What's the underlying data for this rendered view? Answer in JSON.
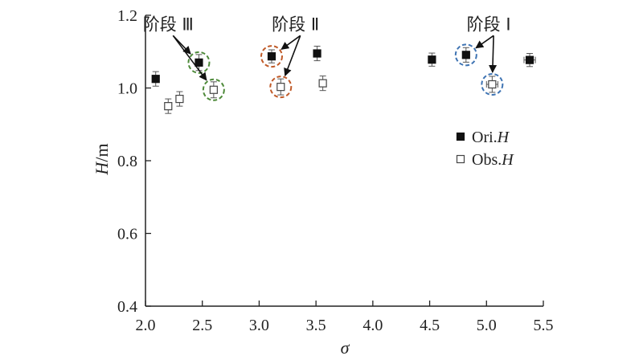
{
  "chart_data": {
    "type": "scatter",
    "title": "",
    "xlabel": "σ",
    "ylabel": "H/m",
    "xlim": [
      2.0,
      5.5
    ],
    "ylim": [
      0.4,
      1.2
    ],
    "xticks": [
      "2.0",
      "2.5",
      "3.0",
      "3.5",
      "4.0",
      "4.5",
      "5.0",
      "5.5"
    ],
    "yticks": [
      "0.4",
      "0.6",
      "0.8",
      "1.0",
      "1.2"
    ],
    "grid": false,
    "legend_position": "right",
    "series": [
      {
        "name": "Ori.H",
        "legend_prefix": "Ori.",
        "legend_var": "H",
        "marker": "filled-square",
        "x": [
          2.09,
          2.47,
          3.11,
          3.51,
          4.52,
          4.82,
          5.38
        ],
        "y": [
          1.025,
          1.07,
          1.087,
          1.095,
          1.078,
          1.091,
          1.077
        ],
        "yerr": [
          0.02,
          0.022,
          0.018,
          0.02,
          0.018,
          0.02,
          0.018
        ],
        "xerr": [
          0.0,
          0.0,
          0.0,
          0.0,
          0.03,
          0.03,
          0.05
        ]
      },
      {
        "name": "Obs.H",
        "legend_prefix": "Obs.",
        "legend_var": "H",
        "marker": "open-square",
        "x": [
          2.2,
          2.3,
          2.6,
          3.19,
          3.56,
          5.05
        ],
        "y": [
          0.95,
          0.97,
          0.995,
          1.003,
          1.013,
          1.01
        ],
        "yerr": [
          0.02,
          0.02,
          0.022,
          0.022,
          0.02,
          0.022
        ],
        "xerr": [
          0.0,
          0.0,
          0.0,
          0.0,
          0.0,
          0.05
        ]
      }
    ],
    "annotations": [
      {
        "label": "阶段 Ⅲ",
        "color": "#4e8a3a",
        "circles": [
          {
            "x": 2.47,
            "y": 1.07
          },
          {
            "x": 2.6,
            "y": 0.995
          }
        ],
        "anchor": {
          "x": 2.2,
          "y": 1.175
        }
      },
      {
        "label": "阶段 Ⅱ",
        "color": "#c05a28",
        "circles": [
          {
            "x": 3.11,
            "y": 1.087
          },
          {
            "x": 3.19,
            "y": 1.003
          }
        ],
        "anchor": {
          "x": 3.32,
          "y": 1.175
        }
      },
      {
        "label": "阶段 Ⅰ",
        "color": "#3f74b3",
        "circles": [
          {
            "x": 4.82,
            "y": 1.091
          },
          {
            "x": 5.05,
            "y": 1.01
          }
        ],
        "anchor": {
          "x": 5.02,
          "y": 1.175
        }
      }
    ]
  }
}
